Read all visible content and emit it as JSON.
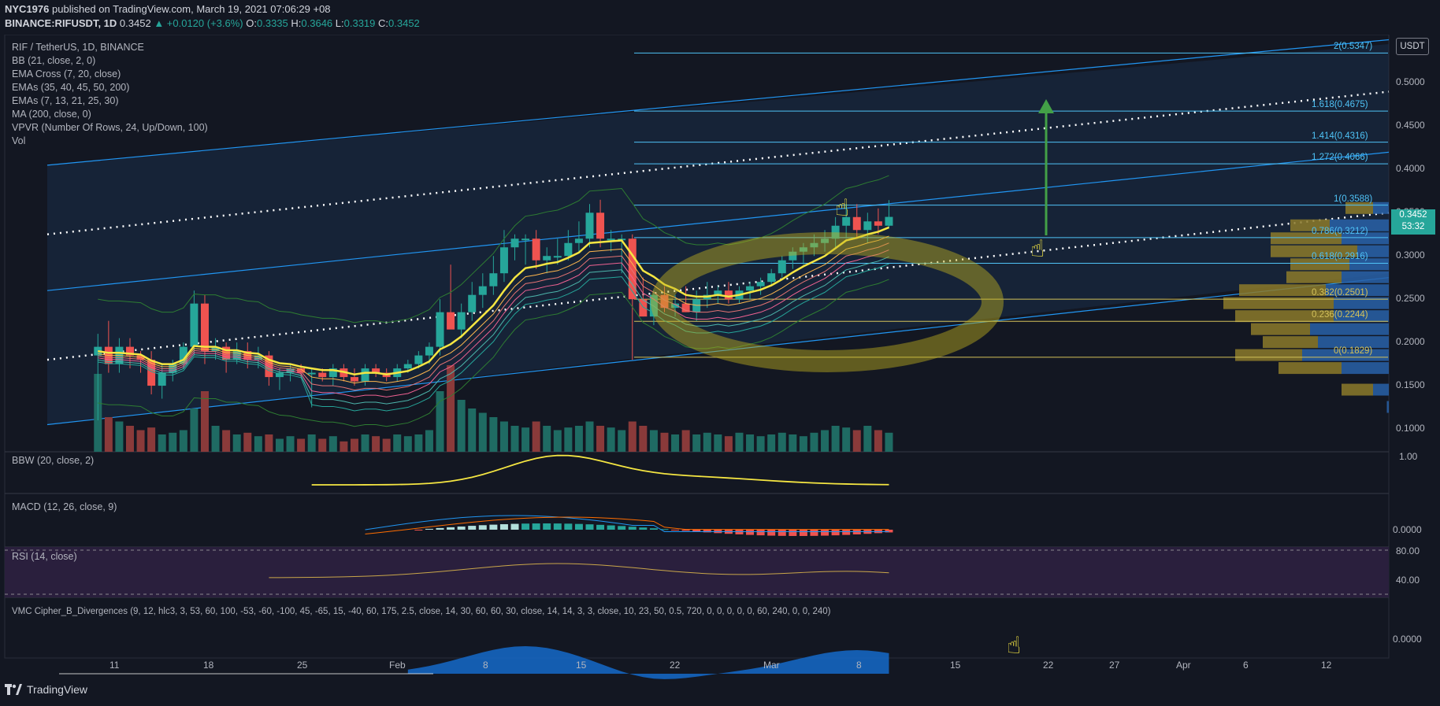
{
  "header": {
    "author": "NYC1976",
    "published_text": "published on TradingView.com, March 19, 2021 07:06:29 +08",
    "symbol": "BINANCE:RIFUSDT, 1D",
    "last": "0.3452",
    "change": "▲ +0.0120 (+3.6%)",
    "o_label": "O:",
    "o": "0.3335",
    "h_label": "H:",
    "h": "0.3646",
    "l_label": "L:",
    "l": "0.3319",
    "c_label": "C:",
    "c": "0.3452"
  },
  "legend": [
    "RIF / TetherUS, 1D, BINANCE",
    "BB (21, close, 2, 0)",
    "EMA Cross (7, 20, close)",
    "EMAs (35, 40, 45, 50, 200)",
    "EMAs (7, 13, 21, 25, 30)",
    "MA (200, close, 0)",
    "VPVR (Number Of Rows, 24, Up/Down, 100)",
    "Vol"
  ],
  "panes": {
    "bbw": "BBW (20, close, 2)",
    "macd": "MACD (12, 26, close, 9)",
    "rsi": "RSI (14, close)",
    "vmc": "VMC Cipher_B_Divergences (9, 12, hlc3, 3, 53, 60, 100, -53, -60, -100, 45, -65, 15, -40, 60, 175, 2.5, close, 14, 30, 60, 60, 30, close, 14, 14, 3, 3, close, 10, 23, 50, 0.5, 720, 0, 0, 0, 0, 0, 60, 240, 0, 0, 240)"
  },
  "price_axis": {
    "unit": "USDT",
    "ticks": [
      "0.5000",
      "0.4500",
      "0.4000",
      "0.3500",
      "0.3000",
      "0.2500",
      "0.2000",
      "0.1500",
      "0.1000"
    ],
    "bbw_ticks": [
      "1.00"
    ],
    "macd_ticks": [
      "0.0000"
    ],
    "rsi_ticks": [
      "80.00",
      "40.00"
    ],
    "vmc_ticks": [
      "0.0000"
    ],
    "price_tag": "0.3452",
    "countdown": "53:32"
  },
  "time_axis": [
    "11",
    "18",
    "25",
    "Feb",
    "8",
    "15",
    "22",
    "Mar",
    "8",
    "15",
    "22",
    "27",
    "Apr",
    "6",
    "12"
  ],
  "fib_levels": [
    {
      "label": "2(0.5347)",
      "value": 0.5347
    },
    {
      "label": "1.618(0.4675)",
      "value": 0.4675
    },
    {
      "label": "1.414(0.4316)",
      "value": 0.4316
    },
    {
      "label": "1.272(0.4066)",
      "value": 0.4066
    },
    {
      "label": "1(0.3588)",
      "value": 0.3588
    },
    {
      "label": "0.786(0.3212)",
      "value": 0.3212
    },
    {
      "label": "0.618(0.2916)",
      "value": 0.2916
    },
    {
      "label": "0.382(0.2501)",
      "value": 0.2501
    },
    {
      "label": "0.236(0.2244)",
      "value": 0.2244
    },
    {
      "label": "0(0.1829)",
      "value": 0.1829
    }
  ],
  "brand": "TradingView",
  "colors": {
    "up": "#26a69a",
    "down": "#ef5350",
    "ema_yellow": "#f5e642",
    "fib": "#4fc3f7",
    "channel": "#2196f3",
    "vpvr_up": "#2962a8",
    "vpvr_down": "#8c7a2a",
    "arrow": "#43a047"
  },
  "chart_data": {
    "type": "candlestick",
    "title": "RIF / TetherUS, 1D, BINANCE",
    "ylabel": "USDT",
    "ylim": [
      0.09,
      0.545
    ],
    "x_start": "2021-01-06",
    "candles_ohlc": [
      [
        0.185,
        0.21,
        0.11,
        0.195
      ],
      [
        0.195,
        0.225,
        0.165,
        0.175
      ],
      [
        0.175,
        0.205,
        0.165,
        0.195
      ],
      [
        0.195,
        0.205,
        0.17,
        0.185
      ],
      [
        0.185,
        0.19,
        0.165,
        0.18
      ],
      [
        0.18,
        0.19,
        0.14,
        0.15
      ],
      [
        0.15,
        0.175,
        0.135,
        0.165
      ],
      [
        0.165,
        0.18,
        0.155,
        0.175
      ],
      [
        0.175,
        0.2,
        0.17,
        0.195
      ],
      [
        0.195,
        0.26,
        0.185,
        0.245
      ],
      [
        0.245,
        0.255,
        0.175,
        0.19
      ],
      [
        0.19,
        0.205,
        0.18,
        0.195
      ],
      [
        0.195,
        0.2,
        0.165,
        0.18
      ],
      [
        0.18,
        0.2,
        0.175,
        0.19
      ],
      [
        0.19,
        0.2,
        0.17,
        0.18
      ],
      [
        0.18,
        0.195,
        0.17,
        0.185
      ],
      [
        0.185,
        0.19,
        0.15,
        0.16
      ],
      [
        0.16,
        0.17,
        0.145,
        0.165
      ],
      [
        0.165,
        0.175,
        0.155,
        0.17
      ],
      [
        0.17,
        0.175,
        0.16,
        0.165
      ],
      [
        0.165,
        0.17,
        0.125,
        0.165
      ],
      [
        0.165,
        0.17,
        0.155,
        0.16
      ],
      [
        0.16,
        0.175,
        0.15,
        0.17
      ],
      [
        0.17,
        0.175,
        0.155,
        0.16
      ],
      [
        0.16,
        0.17,
        0.15,
        0.155
      ],
      [
        0.155,
        0.175,
        0.15,
        0.17
      ],
      [
        0.17,
        0.175,
        0.16,
        0.165
      ],
      [
        0.165,
        0.17,
        0.155,
        0.16
      ],
      [
        0.16,
        0.175,
        0.155,
        0.17
      ],
      [
        0.17,
        0.18,
        0.165,
        0.175
      ],
      [
        0.175,
        0.19,
        0.17,
        0.185
      ],
      [
        0.185,
        0.2,
        0.175,
        0.195
      ],
      [
        0.195,
        0.25,
        0.185,
        0.235
      ],
      [
        0.235,
        0.29,
        0.22,
        0.215
      ],
      [
        0.215,
        0.245,
        0.205,
        0.235
      ],
      [
        0.235,
        0.27,
        0.225,
        0.255
      ],
      [
        0.255,
        0.28,
        0.24,
        0.265
      ],
      [
        0.265,
        0.3,
        0.255,
        0.28
      ],
      [
        0.28,
        0.33,
        0.27,
        0.31
      ],
      [
        0.31,
        0.325,
        0.295,
        0.32
      ],
      [
        0.32,
        0.325,
        0.29,
        0.32
      ],
      [
        0.32,
        0.33,
        0.285,
        0.295
      ],
      [
        0.295,
        0.31,
        0.28,
        0.3
      ],
      [
        0.3,
        0.32,
        0.29,
        0.3
      ],
      [
        0.3,
        0.33,
        0.295,
        0.315
      ],
      [
        0.315,
        0.34,
        0.305,
        0.32
      ],
      [
        0.32,
        0.36,
        0.31,
        0.35
      ],
      [
        0.35,
        0.365,
        0.31,
        0.32
      ],
      [
        0.32,
        0.33,
        0.305,
        0.32
      ],
      [
        0.32,
        0.325,
        0.28,
        0.32
      ],
      [
        0.32,
        0.325,
        0.18,
        0.25
      ],
      [
        0.25,
        0.275,
        0.23,
        0.23
      ],
      [
        0.23,
        0.26,
        0.22,
        0.255
      ],
      [
        0.255,
        0.265,
        0.235,
        0.24
      ],
      [
        0.24,
        0.255,
        0.23,
        0.245
      ],
      [
        0.245,
        0.265,
        0.235,
        0.235
      ],
      [
        0.235,
        0.26,
        0.225,
        0.25
      ],
      [
        0.25,
        0.27,
        0.24,
        0.255
      ],
      [
        0.255,
        0.265,
        0.245,
        0.26
      ],
      [
        0.26,
        0.27,
        0.245,
        0.25
      ],
      [
        0.25,
        0.265,
        0.245,
        0.26
      ],
      [
        0.26,
        0.27,
        0.25,
        0.265
      ],
      [
        0.265,
        0.275,
        0.255,
        0.27
      ],
      [
        0.27,
        0.285,
        0.265,
        0.28
      ],
      [
        0.28,
        0.3,
        0.275,
        0.295
      ],
      [
        0.295,
        0.31,
        0.285,
        0.305
      ],
      [
        0.305,
        0.315,
        0.29,
        0.31
      ],
      [
        0.31,
        0.325,
        0.3,
        0.315
      ],
      [
        0.315,
        0.33,
        0.305,
        0.32
      ],
      [
        0.32,
        0.345,
        0.31,
        0.335
      ],
      [
        0.335,
        0.36,
        0.32,
        0.345
      ],
      [
        0.345,
        0.36,
        0.32,
        0.33
      ],
      [
        0.33,
        0.35,
        0.315,
        0.34
      ],
      [
        0.34,
        0.355,
        0.325,
        0.335
      ],
      [
        0.335,
        0.3646,
        0.3319,
        0.3452
      ]
    ],
    "volume": [
      0.9,
      0.4,
      0.35,
      0.3,
      0.25,
      0.28,
      0.2,
      0.22,
      0.25,
      0.5,
      0.7,
      0.3,
      0.25,
      0.2,
      0.22,
      0.18,
      0.2,
      0.15,
      0.18,
      0.15,
      0.2,
      0.15,
      0.18,
      0.12,
      0.15,
      0.2,
      0.18,
      0.15,
      0.2,
      0.18,
      0.2,
      0.25,
      0.7,
      1.0,
      0.6,
      0.5,
      0.45,
      0.4,
      0.35,
      0.3,
      0.28,
      0.35,
      0.3,
      0.25,
      0.28,
      0.3,
      0.35,
      0.3,
      0.28,
      0.25,
      0.35,
      0.3,
      0.25,
      0.22,
      0.2,
      0.25,
      0.2,
      0.22,
      0.2,
      0.18,
      0.22,
      0.2,
      0.18,
      0.2,
      0.22,
      0.2,
      0.18,
      0.22,
      0.25,
      0.3,
      0.28,
      0.25,
      0.3,
      0.25,
      0.22
    ],
    "ema_fast": [
      0.19,
      0.188,
      0.188,
      0.187,
      0.186,
      0.179,
      0.175,
      0.175,
      0.18,
      0.196,
      0.195,
      0.195,
      0.191,
      0.191,
      0.188,
      0.187,
      0.18,
      0.176,
      0.175,
      0.172,
      0.17,
      0.168,
      0.168,
      0.166,
      0.163,
      0.165,
      0.165,
      0.163,
      0.165,
      0.167,
      0.172,
      0.178,
      0.192,
      0.198,
      0.207,
      0.219,
      0.231,
      0.243,
      0.26,
      0.275,
      0.286,
      0.288,
      0.291,
      0.293,
      0.298,
      0.304,
      0.315,
      0.316,
      0.317,
      0.318,
      0.301,
      0.283,
      0.276,
      0.267,
      0.262,
      0.255,
      0.253,
      0.253,
      0.255,
      0.253,
      0.255,
      0.258,
      0.261,
      0.266,
      0.273,
      0.281,
      0.288,
      0.294,
      0.3,
      0.309,
      0.318,
      0.321,
      0.325,
      0.328,
      0.333
    ]
  }
}
